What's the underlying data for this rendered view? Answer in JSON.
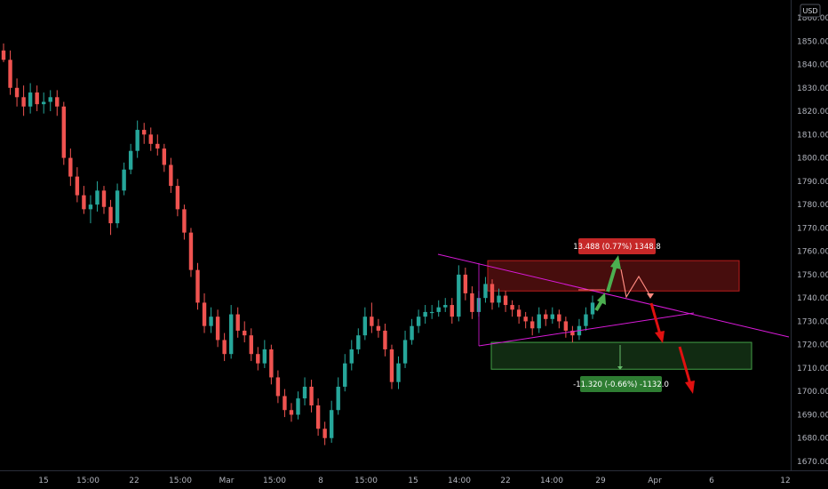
{
  "chart_data": {
    "type": "candlestick",
    "currency_label": "USD",
    "ylim": [
      1665,
      1865
    ],
    "y_ticks": [
      1670,
      1680,
      1690,
      1700,
      1710,
      1720,
      1730,
      1740,
      1750,
      1760,
      1770,
      1780,
      1790,
      1800,
      1810,
      1820,
      1830,
      1840,
      1850,
      1860
    ],
    "y_tick_labels": [
      "1670.000",
      "1680.000",
      "1690.000",
      "1700.000",
      "1710.000",
      "1720.000",
      "1730.000",
      "1740.000",
      "1750.000",
      "1760.000",
      "1770.000",
      "1780.000",
      "1790.000",
      "1800.000",
      "1810.000",
      "1820.000",
      "1830.000",
      "1840.000",
      "1850.000",
      "1860.000"
    ],
    "x_tick_labels": [
      "15",
      "15:00",
      "22",
      "15:00",
      "Mar",
      "15:00",
      "8",
      "15:00",
      "15",
      "14:00",
      "22",
      "14:00",
      "29",
      "Apr",
      "6",
      "12"
    ],
    "colors": {
      "up": "#26a69a",
      "down": "#ef5350",
      "background": "#000000"
    },
    "price_path": [
      1846,
      1842,
      1830,
      1826,
      1822,
      1828,
      1823,
      1824,
      1826,
      1822,
      1800,
      1792,
      1784,
      1778,
      1780,
      1786,
      1779,
      1772,
      1786,
      1795,
      1803,
      1812,
      1810,
      1806,
      1804,
      1797,
      1788,
      1778,
      1768,
      1752,
      1738,
      1728,
      1732,
      1722,
      1716,
      1733,
      1726,
      1724,
      1716,
      1712,
      1718,
      1706,
      1698,
      1692,
      1690,
      1697,
      1702,
      1694,
      1684,
      1680,
      1692,
      1702,
      1712,
      1718,
      1724,
      1732,
      1728,
      1726,
      1718,
      1704,
      1712,
      1722,
      1728,
      1732,
      1734,
      1734,
      1736,
      1737,
      1732,
      1750,
      1742,
      1734,
      1740,
      1746,
      1738,
      1741,
      1737,
      1735,
      1732,
      1730,
      1727,
      1733,
      1731,
      1733,
      1730,
      1726,
      1724,
      1728,
      1733,
      1738
    ],
    "candles": {
      "ohlc": [
        [
          1846,
          1849,
          1841,
          1842
        ],
        [
          1842,
          1846,
          1827,
          1830
        ],
        [
          1830,
          1834,
          1822,
          1826
        ],
        [
          1826,
          1831,
          1818,
          1822
        ],
        [
          1822,
          1832,
          1819,
          1828
        ],
        [
          1828,
          1831,
          1820,
          1823
        ],
        [
          1823,
          1828,
          1819,
          1824
        ],
        [
          1824,
          1829,
          1820,
          1826
        ],
        [
          1826,
          1829,
          1818,
          1822
        ],
        [
          1822,
          1824,
          1797,
          1800
        ],
        [
          1800,
          1804,
          1788,
          1792
        ],
        [
          1792,
          1796,
          1781,
          1784
        ],
        [
          1784,
          1788,
          1776,
          1778
        ],
        [
          1778,
          1784,
          1772,
          1780
        ],
        [
          1780,
          1790,
          1777,
          1786
        ],
        [
          1786,
          1788,
          1776,
          1779
        ],
        [
          1779,
          1782,
          1767,
          1772
        ],
        [
          1772,
          1789,
          1770,
          1786
        ],
        [
          1786,
          1798,
          1784,
          1795
        ],
        [
          1795,
          1806,
          1793,
          1803
        ],
        [
          1803,
          1816,
          1800,
          1812
        ],
        [
          1812,
          1815,
          1806,
          1810
        ],
        [
          1810,
          1813,
          1803,
          1806
        ],
        [
          1806,
          1810,
          1801,
          1804
        ],
        [
          1804,
          1806,
          1794,
          1797
        ],
        [
          1797,
          1800,
          1785,
          1788
        ],
        [
          1788,
          1791,
          1775,
          1778
        ],
        [
          1778,
          1780,
          1765,
          1768
        ],
        [
          1768,
          1770,
          1749,
          1752
        ],
        [
          1752,
          1755,
          1735,
          1738
        ],
        [
          1738,
          1742,
          1725,
          1728
        ],
        [
          1728,
          1736,
          1725,
          1732
        ],
        [
          1732,
          1735,
          1719,
          1722
        ],
        [
          1722,
          1725,
          1713,
          1716
        ],
        [
          1716,
          1737,
          1714,
          1733
        ],
        [
          1733,
          1736,
          1723,
          1726
        ],
        [
          1726,
          1730,
          1721,
          1724
        ],
        [
          1724,
          1727,
          1713,
          1716
        ],
        [
          1716,
          1719,
          1709,
          1712
        ],
        [
          1712,
          1722,
          1710,
          1718
        ],
        [
          1718,
          1720,
          1703,
          1706
        ],
        [
          1706,
          1709,
          1695,
          1698
        ],
        [
          1698,
          1701,
          1689,
          1692
        ],
        [
          1692,
          1695,
          1687,
          1690
        ],
        [
          1690,
          1700,
          1688,
          1697
        ],
        [
          1697,
          1706,
          1694,
          1702
        ],
        [
          1702,
          1705,
          1691,
          1694
        ],
        [
          1694,
          1697,
          1681,
          1684
        ],
        [
          1684,
          1687,
          1677,
          1680
        ],
        [
          1680,
          1696,
          1678,
          1692
        ],
        [
          1692,
          1706,
          1690,
          1702
        ],
        [
          1702,
          1716,
          1700,
          1712
        ],
        [
          1712,
          1722,
          1709,
          1718
        ],
        [
          1718,
          1727,
          1716,
          1724
        ],
        [
          1724,
          1736,
          1722,
          1732
        ],
        [
          1732,
          1738,
          1725,
          1728
        ],
        [
          1728,
          1731,
          1723,
          1726
        ],
        [
          1726,
          1729,
          1715,
          1718
        ],
        [
          1718,
          1720,
          1701,
          1704
        ],
        [
          1704,
          1715,
          1701,
          1712
        ],
        [
          1712,
          1726,
          1710,
          1722
        ],
        [
          1722,
          1731,
          1720,
          1728
        ],
        [
          1728,
          1735,
          1725,
          1732
        ],
        [
          1732,
          1737,
          1729,
          1734
        ],
        [
          1734,
          1737,
          1731,
          1734
        ],
        [
          1734,
          1739,
          1732,
          1736
        ],
        [
          1736,
          1740,
          1734,
          1737
        ],
        [
          1737,
          1740,
          1729,
          1732
        ],
        [
          1732,
          1754,
          1730,
          1750
        ],
        [
          1750,
          1753,
          1739,
          1742
        ],
        [
          1742,
          1745,
          1731,
          1734
        ],
        [
          1734,
          1743,
          1732,
          1740
        ],
        [
          1740,
          1749,
          1738,
          1746
        ],
        [
          1746,
          1748,
          1735,
          1738
        ],
        [
          1738,
          1744,
          1736,
          1741
        ],
        [
          1741,
          1743,
          1734,
          1737
        ],
        [
          1737,
          1739,
          1732,
          1735
        ],
        [
          1735,
          1737,
          1729,
          1732
        ],
        [
          1732,
          1734,
          1727,
          1730
        ],
        [
          1730,
          1732,
          1724,
          1727
        ],
        [
          1727,
          1736,
          1725,
          1733
        ],
        [
          1733,
          1735,
          1728,
          1731
        ],
        [
          1731,
          1736,
          1729,
          1733
        ],
        [
          1733,
          1735,
          1727,
          1730
        ],
        [
          1730,
          1732,
          1723,
          1726
        ],
        [
          1726,
          1728,
          1721,
          1724
        ],
        [
          1724,
          1731,
          1722,
          1728
        ],
        [
          1728,
          1736,
          1726,
          1733
        ],
        [
          1733,
          1741,
          1731,
          1738
        ]
      ]
    },
    "annotations": [
      {
        "type": "range_label",
        "text": "13.488 (0.77%) 1348.8",
        "color": "#c62828",
        "zone": [
          1743,
          1756
        ]
      },
      {
        "type": "range_label",
        "text": "-11.320 (-0.66%) -1132.0",
        "color": "#2e7d32",
        "zone": [
          1709.5,
          1721
        ]
      },
      {
        "type": "trendline",
        "color": "#d81ad8",
        "from": [
          1759,
          "left"
        ],
        "to": [
          1723,
          "right"
        ]
      },
      {
        "type": "trendline",
        "color": "#d81ad8",
        "from": [
          1720,
          "left"
        ],
        "to": [
          1733,
          "right"
        ]
      }
    ]
  }
}
